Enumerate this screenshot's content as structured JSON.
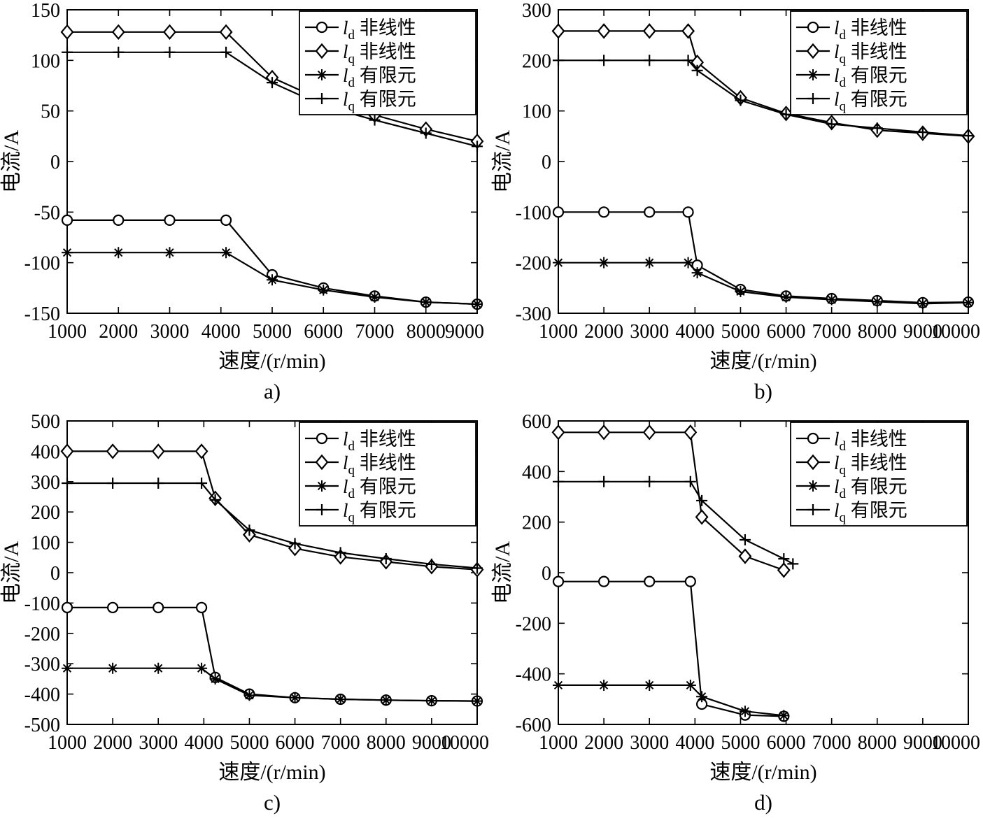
{
  "colors": {
    "line": "#000000",
    "background": "#ffffff"
  },
  "legend_items": [
    {
      "key": "ld_nonlinear",
      "var": "l",
      "sub": "d",
      "text": "非线性",
      "marker": "circle"
    },
    {
      "key": "lq_nonlinear",
      "var": "l",
      "sub": "q",
      "text": "非线性",
      "marker": "diamond"
    },
    {
      "key": "ld_fem",
      "var": "l",
      "sub": "d",
      "text": "有限元",
      "marker": "asterisk"
    },
    {
      "key": "lq_fem",
      "var": "l",
      "sub": "q",
      "text": "有限元",
      "marker": "plus"
    }
  ],
  "chart_data": [
    {
      "id": "a",
      "caption": "a)",
      "type": "line",
      "xlabel": "速度/(r/min)",
      "ylabel": "电流/A",
      "xlim": [
        1000,
        9000
      ],
      "ylim": [
        -150,
        150
      ],
      "xticks": [
        1000,
        2000,
        3000,
        4000,
        5000,
        6000,
        7000,
        8000,
        9000
      ],
      "yticks": [
        -150,
        -100,
        -50,
        0,
        50,
        100,
        150
      ],
      "grid": false,
      "legend_position": "top-right",
      "series": [
        {
          "key": "ld_nonlinear",
          "marker": "circle",
          "points": [
            [
              1000,
              -58
            ],
            [
              2000,
              -58
            ],
            [
              3000,
              -58
            ],
            [
              4100,
              -58
            ],
            [
              5000,
              -112
            ],
            [
              6000,
              -125
            ],
            [
              7000,
              -133
            ],
            [
              8000,
              -139
            ],
            [
              9000,
              -141
            ]
          ]
        },
        {
          "key": "lq_nonlinear",
          "marker": "diamond",
          "points": [
            [
              1000,
              128
            ],
            [
              2000,
              128
            ],
            [
              3000,
              128
            ],
            [
              4100,
              128
            ],
            [
              5000,
              83
            ],
            [
              6000,
              60
            ],
            [
              7000,
              46
            ],
            [
              8000,
              32
            ],
            [
              9000,
              20
            ]
          ]
        },
        {
          "key": "ld_fem",
          "marker": "asterisk",
          "points": [
            [
              1000,
              -90
            ],
            [
              2000,
              -90
            ],
            [
              3000,
              -90
            ],
            [
              4100,
              -90
            ],
            [
              5000,
              -117
            ],
            [
              6000,
              -127
            ],
            [
              7000,
              -134
            ],
            [
              8000,
              -139
            ],
            [
              9000,
              -141
            ]
          ]
        },
        {
          "key": "lq_fem",
          "marker": "plus",
          "points": [
            [
              1000,
              108
            ],
            [
              2000,
              108
            ],
            [
              3000,
              108
            ],
            [
              4100,
              108
            ],
            [
              5000,
              78
            ],
            [
              6000,
              55
            ],
            [
              7000,
              41
            ],
            [
              8000,
              28
            ],
            [
              9000,
              15
            ]
          ]
        }
      ]
    },
    {
      "id": "b",
      "caption": "b)",
      "type": "line",
      "xlabel": "速度/(r/min)",
      "ylabel": "电流/A",
      "xlim": [
        1000,
        10000
      ],
      "ylim": [
        -300,
        300
      ],
      "xticks": [
        1000,
        2000,
        3000,
        4000,
        5000,
        6000,
        7000,
        8000,
        9000,
        10000
      ],
      "yticks": [
        -300,
        -200,
        -100,
        0,
        100,
        200,
        300
      ],
      "grid": false,
      "legend_position": "top-right",
      "series": [
        {
          "key": "ld_nonlinear",
          "marker": "circle",
          "points": [
            [
              1000,
              -100
            ],
            [
              2000,
              -100
            ],
            [
              3000,
              -100
            ],
            [
              3850,
              -100
            ],
            [
              4050,
              -205
            ],
            [
              5000,
              -253
            ],
            [
              6000,
              -266
            ],
            [
              7000,
              -271
            ],
            [
              8000,
              -275
            ],
            [
              9000,
              -279
            ],
            [
              10000,
              -278
            ]
          ]
        },
        {
          "key": "lq_nonlinear",
          "marker": "diamond",
          "points": [
            [
              1000,
              258
            ],
            [
              2000,
              258
            ],
            [
              3000,
              258
            ],
            [
              3850,
              258
            ],
            [
              4050,
              196
            ],
            [
              5000,
              126
            ],
            [
              6000,
              95
            ],
            [
              7000,
              77
            ],
            [
              8000,
              62
            ],
            [
              9000,
              56
            ],
            [
              10000,
              50
            ]
          ]
        },
        {
          "key": "ld_fem",
          "marker": "asterisk",
          "points": [
            [
              1000,
              -200
            ],
            [
              2000,
              -200
            ],
            [
              3000,
              -200
            ],
            [
              3850,
              -200
            ],
            [
              4050,
              -220
            ],
            [
              5000,
              -257
            ],
            [
              6000,
              -268
            ],
            [
              7000,
              -273
            ],
            [
              8000,
              -277
            ],
            [
              9000,
              -281
            ],
            [
              10000,
              -279
            ]
          ]
        },
        {
          "key": "lq_fem",
          "marker": "plus",
          "points": [
            [
              1000,
              200
            ],
            [
              2000,
              200
            ],
            [
              3000,
              200
            ],
            [
              3850,
              200
            ],
            [
              4050,
              180
            ],
            [
              5000,
              121
            ],
            [
              6000,
              93
            ],
            [
              7000,
              74
            ],
            [
              8000,
              66
            ],
            [
              9000,
              58
            ],
            [
              10000,
              51
            ]
          ]
        }
      ]
    },
    {
      "id": "c",
      "caption": "c)",
      "type": "line",
      "xlabel": "速度/(r/min)",
      "ylabel": "电流/A",
      "xlim": [
        1000,
        10000
      ],
      "ylim": [
        -500,
        500
      ],
      "xticks": [
        1000,
        2000,
        3000,
        4000,
        5000,
        6000,
        7000,
        8000,
        9000,
        10000
      ],
      "yticks": [
        -500,
        -400,
        -300,
        -200,
        -100,
        0,
        100,
        200,
        300,
        400,
        500
      ],
      "grid": false,
      "legend_position": "top-right",
      "series": [
        {
          "key": "ld_nonlinear",
          "marker": "circle",
          "points": [
            [
              1000,
              -115
            ],
            [
              2000,
              -115
            ],
            [
              3000,
              -115
            ],
            [
              3950,
              -115
            ],
            [
              4250,
              -345
            ],
            [
              5000,
              -400
            ],
            [
              6000,
              -412
            ],
            [
              7000,
              -417
            ],
            [
              8000,
              -420
            ],
            [
              9000,
              -422
            ],
            [
              10000,
              -423
            ]
          ]
        },
        {
          "key": "lq_nonlinear",
          "marker": "diamond",
          "points": [
            [
              1000,
              400
            ],
            [
              2000,
              400
            ],
            [
              3000,
              400
            ],
            [
              3950,
              400
            ],
            [
              4250,
              245
            ],
            [
              5000,
              125
            ],
            [
              6000,
              80
            ],
            [
              7000,
              52
            ],
            [
              8000,
              36
            ],
            [
              9000,
              20
            ],
            [
              10000,
              10
            ]
          ]
        },
        {
          "key": "ld_fem",
          "marker": "asterisk",
          "points": [
            [
              1000,
              -315
            ],
            [
              2000,
              -315
            ],
            [
              3000,
              -315
            ],
            [
              3950,
              -315
            ],
            [
              4250,
              -350
            ],
            [
              5000,
              -404
            ],
            [
              6000,
              -412
            ],
            [
              7000,
              -417
            ],
            [
              8000,
              -420
            ],
            [
              9000,
              -422
            ],
            [
              10000,
              -423
            ]
          ]
        },
        {
          "key": "lq_fem",
          "marker": "plus",
          "points": [
            [
              1000,
              295
            ],
            [
              2000,
              295
            ],
            [
              3000,
              295
            ],
            [
              3950,
              295
            ],
            [
              4250,
              240
            ],
            [
              5000,
              140
            ],
            [
              6000,
              96
            ],
            [
              7000,
              66
            ],
            [
              8000,
              46
            ],
            [
              9000,
              28
            ],
            [
              10000,
              15
            ]
          ]
        }
      ]
    },
    {
      "id": "d",
      "caption": "d)",
      "type": "line",
      "xlabel": "速度/(r/min)",
      "ylabel": "电流/A",
      "xlim": [
        1000,
        10000
      ],
      "ylim": [
        -600,
        600
      ],
      "xticks": [
        1000,
        2000,
        3000,
        4000,
        5000,
        6000,
        7000,
        8000,
        9000,
        10000
      ],
      "yticks": [
        -600,
        -400,
        -200,
        0,
        200,
        400,
        600
      ],
      "grid": false,
      "legend_position": "top-right",
      "series": [
        {
          "key": "ld_nonlinear",
          "marker": "circle",
          "points": [
            [
              1000,
              -35
            ],
            [
              2000,
              -35
            ],
            [
              3000,
              -35
            ],
            [
              3900,
              -35
            ],
            [
              4150,
              -520
            ],
            [
              5100,
              -563
            ],
            [
              5950,
              -568
            ]
          ]
        },
        {
          "key": "lq_nonlinear",
          "marker": "diamond",
          "points": [
            [
              1000,
              555
            ],
            [
              2000,
              555
            ],
            [
              3000,
              555
            ],
            [
              3900,
              555
            ],
            [
              4150,
              220
            ],
            [
              5100,
              65
            ],
            [
              5950,
              10
            ]
          ]
        },
        {
          "key": "ld_fem",
          "marker": "asterisk",
          "points": [
            [
              1000,
              -445
            ],
            [
              2000,
              -445
            ],
            [
              3000,
              -445
            ],
            [
              3900,
              -445
            ],
            [
              4150,
              -490
            ],
            [
              5100,
              -548
            ],
            [
              5950,
              -565
            ]
          ]
        },
        {
          "key": "lq_fem",
          "marker": "plus",
          "points": [
            [
              1000,
              360
            ],
            [
              2000,
              360
            ],
            [
              3000,
              360
            ],
            [
              3900,
              360
            ],
            [
              4150,
              285
            ],
            [
              5100,
              130
            ],
            [
              5950,
              55
            ],
            [
              6150,
              35
            ]
          ]
        }
      ]
    }
  ]
}
